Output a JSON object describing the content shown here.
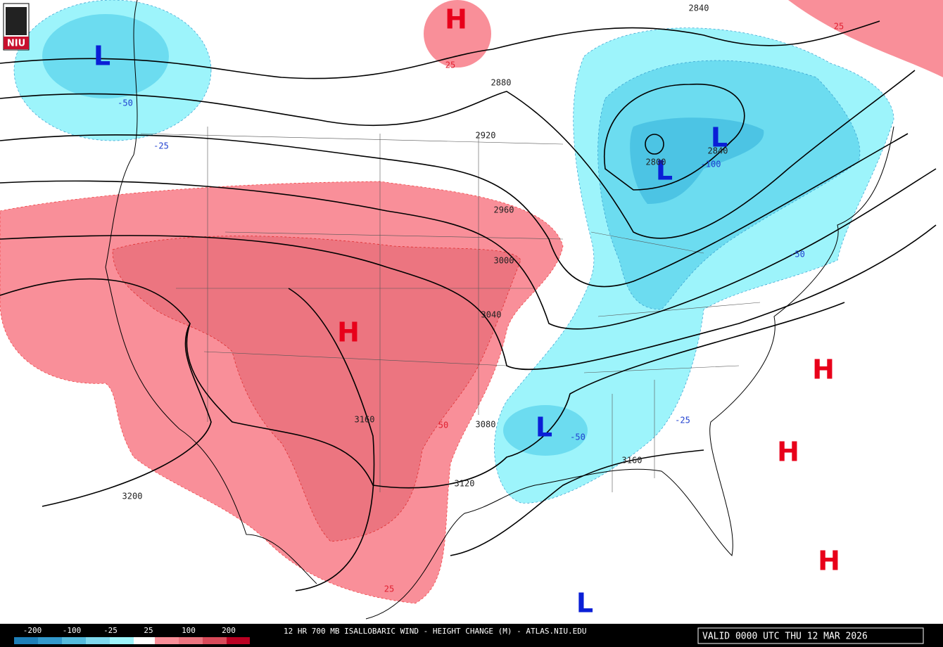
{
  "header": {
    "logo": "NIU"
  },
  "centers": [
    "H",
    "L",
    "L",
    "L",
    "H",
    "H",
    "H",
    "H",
    "L",
    "L"
  ],
  "height_labels": [
    2840,
    2880,
    2920,
    2800,
    2840,
    2960,
    3000,
    3040,
    3080,
    3120,
    3160,
    3160,
    3200
  ],
  "change_labels": [
    25,
    25,
    -50,
    -25,
    -100,
    -50,
    -50,
    -25,
    50,
    25
  ],
  "legend": {
    "labels": [
      -200,
      -100,
      -25,
      25,
      100,
      200
    ]
  },
  "footer": {
    "title": "12 HR 700 MB ISALLOBARIC WIND - HEIGHT CHANGE (M) - ATLAS.NIU.EDU",
    "valid": "VALID 0000 UTC THU 12 MAR 2026"
  }
}
